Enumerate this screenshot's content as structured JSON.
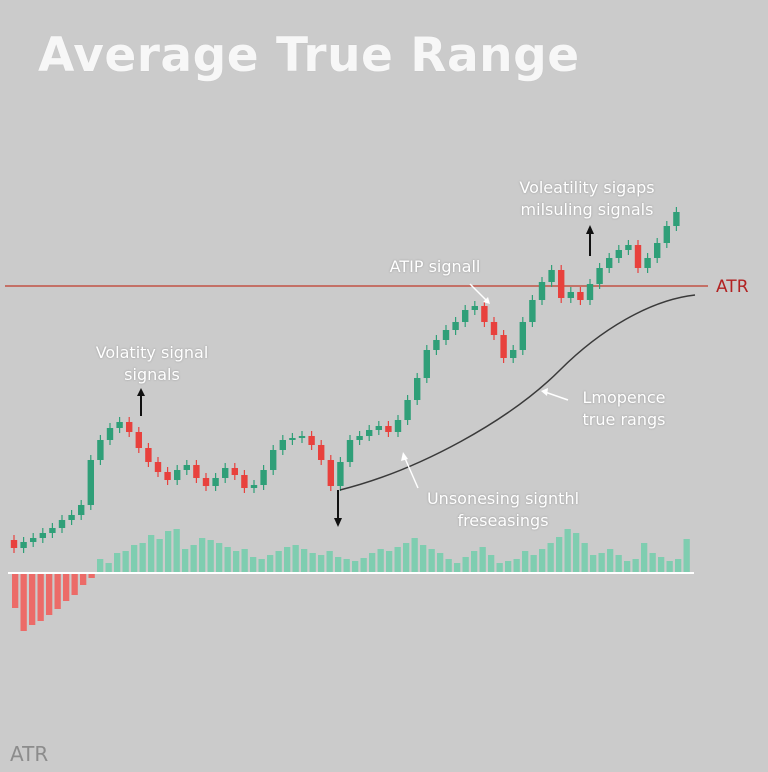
{
  "title": "Average True Range",
  "annotations": {
    "volatility_signals": [
      "Volatity signal",
      "signals"
    ],
    "atip_signal": "ATIP signall",
    "volatility_top": [
      "Voleatility sigaps",
      "milsuling signals"
    ],
    "lmopence": [
      "Lmopence",
      "true rangs"
    ],
    "unsonesing": [
      "Unsonesing signthl",
      "freseasings"
    ]
  },
  "atr_line_label": "ATR",
  "bottom_label": "ATR",
  "colors": {
    "background": "#cbcbcb",
    "up": "#2f9f78",
    "down": "#e8413d",
    "hist_up": "#7fcdb0",
    "hist_down": "#ec6b68",
    "atr_line": "#c0392b",
    "curve": "#3a3a3a",
    "baseline": "#ffffff",
    "title": "#f7f7f7"
  },
  "chart_data": {
    "type": "candlestick",
    "title": "Average True Range",
    "atr_level": 286,
    "series": [
      {
        "name": "price",
        "candles": [
          [
            540,
            548
          ],
          [
            548,
            542
          ],
          [
            542,
            538
          ],
          [
            538,
            533
          ],
          [
            533,
            528
          ],
          [
            528,
            520
          ],
          [
            520,
            515
          ],
          [
            515,
            505
          ],
          [
            505,
            460
          ],
          [
            460,
            440
          ],
          [
            440,
            428
          ],
          [
            428,
            422
          ],
          [
            422,
            432
          ],
          [
            432,
            448
          ],
          [
            448,
            462
          ],
          [
            462,
            472
          ],
          [
            472,
            480
          ],
          [
            480,
            470
          ],
          [
            470,
            465
          ],
          [
            465,
            478
          ],
          [
            478,
            486
          ],
          [
            486,
            478
          ],
          [
            478,
            468
          ],
          [
            468,
            475
          ],
          [
            475,
            488
          ],
          [
            488,
            485
          ],
          [
            485,
            470
          ],
          [
            470,
            450
          ],
          [
            450,
            440
          ],
          [
            440,
            438
          ],
          [
            438,
            436
          ],
          [
            436,
            445
          ],
          [
            445,
            460
          ],
          [
            460,
            486
          ],
          [
            486,
            462
          ],
          [
            462,
            440
          ],
          [
            440,
            436
          ],
          [
            436,
            430
          ],
          [
            430,
            426
          ],
          [
            426,
            432
          ],
          [
            432,
            420
          ],
          [
            420,
            400
          ],
          [
            400,
            378
          ],
          [
            378,
            350
          ],
          [
            350,
            340
          ],
          [
            340,
            330
          ],
          [
            330,
            322
          ],
          [
            322,
            310
          ],
          [
            310,
            306
          ],
          [
            306,
            322
          ],
          [
            322,
            335
          ],
          [
            335,
            358
          ],
          [
            358,
            350
          ],
          [
            350,
            322
          ],
          [
            322,
            300
          ],
          [
            300,
            282
          ],
          [
            282,
            270
          ],
          [
            270,
            298
          ],
          [
            298,
            292
          ],
          [
            292,
            300
          ],
          [
            300,
            284
          ],
          [
            284,
            268
          ],
          [
            268,
            258
          ],
          [
            258,
            250
          ],
          [
            250,
            245
          ],
          [
            245,
            268
          ],
          [
            268,
            258
          ],
          [
            258,
            243
          ],
          [
            243,
            226
          ],
          [
            226,
            212
          ]
        ]
      },
      {
        "name": "histogram",
        "values": [
          -35,
          -58,
          -52,
          -48,
          -42,
          -36,
          -28,
          -22,
          -12,
          -5,
          14,
          10,
          20,
          22,
          28,
          30,
          38,
          34,
          42,
          44,
          24,
          28,
          35,
          33,
          30,
          26,
          22,
          24,
          16,
          14,
          18,
          22,
          26,
          28,
          24,
          20,
          18,
          22,
          16,
          14,
          12,
          15,
          20,
          24,
          22,
          26,
          30,
          35,
          28,
          24,
          20,
          14,
          10,
          16,
          22,
          26,
          18,
          10,
          12,
          14,
          22,
          18,
          24,
          30,
          36,
          44,
          40,
          30,
          18,
          20,
          24,
          18,
          12,
          14,
          30,
          20,
          16,
          12,
          14,
          34
        ]
      }
    ]
  }
}
